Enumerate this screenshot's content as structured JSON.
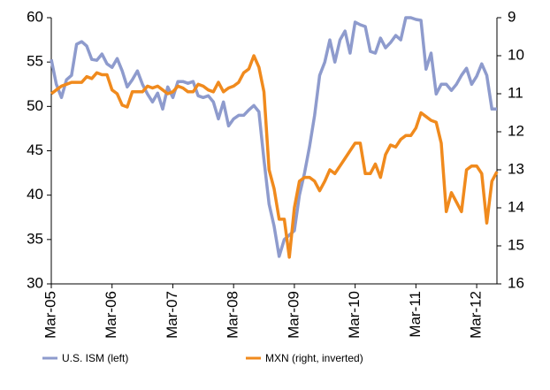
{
  "chart_data": {
    "type": "line",
    "categories": [
      "Mar-05",
      null,
      null,
      null,
      null,
      null,
      null,
      null,
      null,
      null,
      null,
      null,
      "Mar-06",
      null,
      null,
      null,
      null,
      null,
      null,
      null,
      null,
      null,
      null,
      null,
      "Mar-07",
      null,
      null,
      null,
      null,
      null,
      null,
      null,
      null,
      null,
      null,
      null,
      "Mar-08",
      null,
      null,
      null,
      null,
      null,
      null,
      null,
      null,
      null,
      null,
      null,
      "Mar-09",
      null,
      null,
      null,
      null,
      null,
      null,
      null,
      null,
      null,
      null,
      null,
      "Mar-10",
      null,
      null,
      null,
      null,
      null,
      null,
      null,
      null,
      null,
      null,
      null,
      "Mar-11",
      null,
      null,
      null,
      null,
      null,
      null,
      null,
      null,
      null,
      null,
      null,
      "Mar-12",
      null,
      null,
      null,
      null
    ],
    "series": [
      {
        "name": "U.S. ISM (left)",
        "color": "#8e9bcd",
        "axis": "y",
        "values": [
          55.3,
          52.5,
          51.0,
          53.0,
          53.5,
          57.0,
          57.3,
          56.8,
          55.3,
          55.2,
          55.9,
          54.8,
          54.4,
          55.4,
          54.0,
          52.2,
          53.0,
          54.0,
          52.5,
          51.4,
          50.5,
          51.5,
          49.7,
          52.2,
          51.0,
          52.8,
          52.8,
          52.6,
          52.8,
          51.2,
          51.0,
          51.2,
          50.5,
          48.6,
          50.5,
          47.8,
          48.6,
          49.0,
          49.0,
          49.6,
          50.1,
          49.4,
          44.0,
          39.0,
          36.5,
          33.1,
          35.0,
          35.5,
          36.0,
          40.0,
          42.5,
          45.5,
          49.0,
          53.5,
          55.0,
          57.5,
          55.0,
          57.5,
          58.5,
          56.0,
          59.5,
          59.2,
          59.0,
          56.2,
          56.0,
          57.7,
          56.6,
          57.2,
          58.0,
          57.5,
          60.0,
          60.0,
          59.8,
          59.7,
          54.2,
          56.0,
          51.4,
          52.5,
          52.5,
          51.8,
          52.5,
          53.5,
          54.3,
          52.5,
          53.4,
          54.8,
          53.5,
          49.7,
          49.7
        ]
      },
      {
        "name": "MXN (right, inverted)",
        "color": "#f08a1d",
        "axis": "y2",
        "values": [
          11.0,
          10.9,
          10.8,
          10.75,
          10.7,
          10.7,
          10.7,
          10.55,
          10.6,
          10.45,
          10.5,
          10.5,
          10.9,
          11.0,
          11.3,
          11.35,
          10.95,
          10.95,
          10.95,
          10.8,
          10.85,
          10.8,
          10.9,
          11.0,
          10.95,
          10.8,
          10.85,
          10.95,
          10.95,
          10.75,
          10.8,
          10.9,
          10.95,
          10.7,
          10.95,
          10.85,
          10.8,
          10.7,
          10.45,
          10.35,
          10.0,
          10.3,
          10.95,
          13.0,
          13.5,
          14.3,
          14.3,
          15.3,
          14.0,
          13.3,
          13.2,
          13.2,
          13.3,
          13.55,
          13.3,
          13.0,
          13.1,
          12.9,
          12.7,
          12.5,
          12.3,
          12.3,
          13.1,
          13.1,
          12.85,
          13.2,
          12.6,
          12.35,
          12.4,
          12.2,
          12.1,
          12.1,
          11.9,
          11.5,
          11.6,
          11.7,
          11.75,
          12.3,
          14.1,
          13.6,
          13.85,
          14.1,
          13.0,
          12.9,
          12.9,
          13.1,
          14.4,
          13.3,
          13.05
        ]
      }
    ],
    "ylim": [
      30,
      60
    ],
    "yticks": [
      30,
      35,
      40,
      45,
      50,
      55,
      60
    ],
    "y2lim": [
      9,
      16
    ],
    "y2ticks": [
      9,
      10,
      11,
      12,
      13,
      14,
      15,
      16
    ],
    "y2_inverted": true,
    "grid": false,
    "legend": "bottom"
  }
}
